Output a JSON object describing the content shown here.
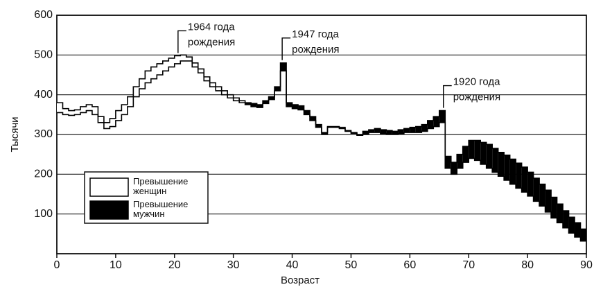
{
  "chart_data": {
    "type": "step-band",
    "x_label": "Возраст",
    "y_label": "Тысячи",
    "xlim": [
      0,
      90
    ],
    "xticks": [
      0,
      10,
      20,
      30,
      40,
      50,
      60,
      70,
      80,
      90
    ],
    "ylim": [
      0,
      600
    ],
    "yticks": [
      100,
      200,
      300,
      400,
      500,
      600
    ],
    "grid": true,
    "x": [
      0,
      1,
      2,
      3,
      4,
      5,
      6,
      7,
      8,
      9,
      10,
      11,
      12,
      13,
      14,
      15,
      16,
      17,
      18,
      19,
      20,
      21,
      22,
      23,
      24,
      25,
      26,
      27,
      28,
      29,
      30,
      31,
      32,
      33,
      34,
      35,
      36,
      37,
      38,
      39,
      40,
      41,
      42,
      43,
      44,
      45,
      46,
      47,
      48,
      49,
      50,
      51,
      52,
      53,
      54,
      55,
      56,
      57,
      58,
      59,
      60,
      61,
      62,
      63,
      64,
      65,
      66,
      67,
      68,
      69,
      70,
      71,
      72,
      73,
      74,
      75,
      76,
      77,
      78,
      79,
      80,
      81,
      82,
      83,
      84,
      85,
      86,
      87,
      88,
      89
    ],
    "series": [
      {
        "color": "#ffffff",
        "values": [
          380,
          365,
          360,
          362,
          370,
          375,
          370,
          345,
          330,
          340,
          360,
          375,
          395,
          420,
          440,
          460,
          470,
          478,
          485,
          492,
          498,
          500,
          495,
          480,
          465,
          445,
          430,
          420,
          410,
          400,
          392,
          385,
          375,
          370,
          368,
          378,
          388,
          410,
          460,
          370,
          365,
          362,
          350,
          335,
          318,
          300,
          320,
          320,
          318,
          310,
          305,
          300,
          300,
          305,
          305,
          302,
          300,
          300,
          302,
          305,
          305,
          305,
          308,
          315,
          320,
          330,
          215,
          200,
          215,
          230,
          240,
          235,
          225,
          215,
          205,
          195,
          185,
          175,
          165,
          155,
          145,
          132,
          120,
          105,
          90,
          78,
          65,
          52,
          42,
          32
        ]
      },
      {
        "color": "#000000",
        "values": [
          355,
          350,
          348,
          350,
          355,
          360,
          350,
          330,
          315,
          320,
          335,
          350,
          370,
          395,
          415,
          430,
          440,
          450,
          460,
          470,
          478,
          485,
          485,
          470,
          455,
          435,
          420,
          410,
          400,
          392,
          385,
          380,
          380,
          378,
          375,
          385,
          395,
          420,
          480,
          380,
          375,
          372,
          360,
          345,
          325,
          305,
          318,
          318,
          315,
          308,
          303,
          298,
          308,
          312,
          315,
          312,
          310,
          308,
          312,
          315,
          318,
          320,
          325,
          335,
          345,
          360,
          245,
          230,
          250,
          270,
          285,
          285,
          280,
          275,
          265,
          255,
          248,
          238,
          228,
          218,
          205,
          190,
          175,
          160,
          142,
          125,
          108,
          92,
          78,
          62
        ]
      }
    ],
    "legend": [
      {
        "label": "Превышение женщин",
        "color": "#ffffff"
      },
      {
        "label": "Превышение мужчин",
        "color": "#000000"
      }
    ],
    "annotations": [
      {
        "text": [
          "1964 года",
          "рождения"
        ],
        "x": 20.6
      },
      {
        "text": [
          "1947 года",
          "рождения"
        ],
        "x": 38.3
      },
      {
        "text": [
          "1920 года",
          "рождения"
        ],
        "x": 65.7
      }
    ]
  }
}
